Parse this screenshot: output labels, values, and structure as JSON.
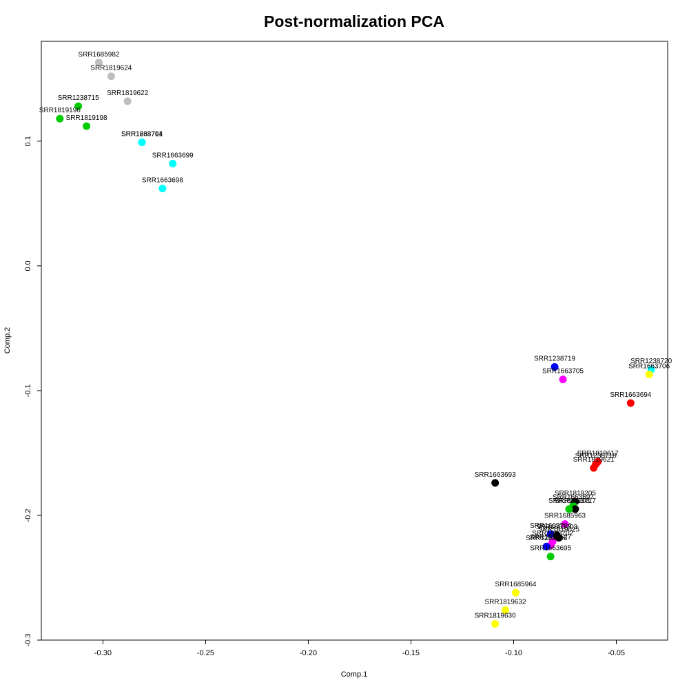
{
  "chart_data": {
    "type": "scatter",
    "title": "Post-normalization PCA",
    "xlabel": "Comp.1",
    "ylabel": "Comp.2",
    "xlim": [
      -0.33,
      -0.025
    ],
    "ylim": [
      -0.3,
      0.18
    ],
    "x_ticks": [
      -0.3,
      -0.25,
      -0.2,
      -0.15,
      -0.1,
      -0.05
    ],
    "x_tick_labels": [
      "-0.30",
      "-0.25",
      "-0.20",
      "-0.15",
      "-0.10",
      "-0.05"
    ],
    "y_ticks": [
      -0.3,
      -0.2,
      -0.1,
      0.0,
      0.1
    ],
    "y_tick_labels": [
      "-0.3",
      "-0.2",
      "-0.1",
      "0.0",
      "0.1"
    ],
    "grid": false,
    "legend": "none",
    "colors": {
      "gray": "#bebebe",
      "green": "#00cd00",
      "cyan": "#00ffff",
      "blue": "#0000ff",
      "magenta": "#ff00ff",
      "red": "#ff0000",
      "yellow": "#ffff00",
      "black": "#000000"
    },
    "points": [
      {
        "label": "SRR1685982",
        "x": -0.302,
        "y": 0.163,
        "color": "gray"
      },
      {
        "label": "SRR1819624",
        "x": -0.296,
        "y": 0.152,
        "color": "gray"
      },
      {
        "label": "SRR1819622",
        "x": -0.288,
        "y": 0.132,
        "color": "gray"
      },
      {
        "label": "SRR1238715",
        "x": -0.312,
        "y": 0.128,
        "color": "green"
      },
      {
        "label": "SRR1819196",
        "x": -0.321,
        "y": 0.118,
        "color": "green"
      },
      {
        "label": "SRR1819198",
        "x": -0.308,
        "y": 0.112,
        "color": "green"
      },
      {
        "label": "SRR1663701",
        "x": -0.281,
        "y": 0.099,
        "color": "cyan"
      },
      {
        "label": "SRR1238714",
        "x": -0.281,
        "y": 0.099,
        "color": "cyan"
      },
      {
        "label": "SRR1663699",
        "x": -0.266,
        "y": 0.082,
        "color": "cyan"
      },
      {
        "label": "SRR1663698",
        "x": -0.271,
        "y": 0.062,
        "color": "cyan"
      },
      {
        "label": "SRR1238719",
        "x": -0.08,
        "y": -0.081,
        "color": "blue"
      },
      {
        "label": "SRR1663705",
        "x": -0.076,
        "y": -0.091,
        "color": "magenta"
      },
      {
        "label": "SRR1238720",
        "x": -0.033,
        "y": -0.083,
        "color": "cyan"
      },
      {
        "label": "SRR1663706",
        "x": -0.034,
        "y": -0.087,
        "color": "yellow"
      },
      {
        "label": "SRR1663694",
        "x": -0.043,
        "y": -0.11,
        "color": "red"
      },
      {
        "label": "SRR1819617",
        "x": -0.059,
        "y": -0.157,
        "color": "red"
      },
      {
        "label": "SRR1238718",
        "x": -0.06,
        "y": -0.159,
        "color": "red"
      },
      {
        "label": "SRR1819621",
        "x": -0.061,
        "y": -0.162,
        "color": "red"
      },
      {
        "label": "SRR1663693",
        "x": -0.109,
        "y": -0.174,
        "color": "black"
      },
      {
        "label": "SRR1819205",
        "x": -0.07,
        "y": -0.189,
        "color": "black"
      },
      {
        "label": "SRR1663697",
        "x": -0.071,
        "y": -0.192,
        "color": "green"
      },
      {
        "label": "SRR1663717",
        "x": -0.07,
        "y": -0.195,
        "color": "black"
      },
      {
        "label": "SRR1819203",
        "x": -0.073,
        "y": -0.195,
        "color": "green"
      },
      {
        "label": "SRR1685963",
        "x": -0.075,
        "y": -0.207,
        "color": "magenta"
      },
      {
        "label": "SRR1663704",
        "x": -0.082,
        "y": -0.215,
        "color": "blue"
      },
      {
        "label": "SRR1663703",
        "x": -0.079,
        "y": -0.216,
        "color": "black"
      },
      {
        "label": "SRR1819625",
        "x": -0.078,
        "y": -0.218,
        "color": "black"
      },
      {
        "label": "SRR1663702",
        "x": -0.081,
        "y": -0.221,
        "color": "magenta"
      },
      {
        "label": "SRR1819627",
        "x": -0.082,
        "y": -0.224,
        "color": "magenta"
      },
      {
        "label": "SRR1238716",
        "x": -0.084,
        "y": -0.225,
        "color": "blue"
      },
      {
        "label": "SRR1663695",
        "x": -0.082,
        "y": -0.233,
        "color": "green"
      },
      {
        "label": "SRR1685964",
        "x": -0.099,
        "y": -0.262,
        "color": "yellow"
      },
      {
        "label": "SRR1819632",
        "x": -0.104,
        "y": -0.276,
        "color": "yellow"
      },
      {
        "label": "SRR1819630",
        "x": -0.109,
        "y": -0.287,
        "color": "yellow"
      }
    ]
  }
}
